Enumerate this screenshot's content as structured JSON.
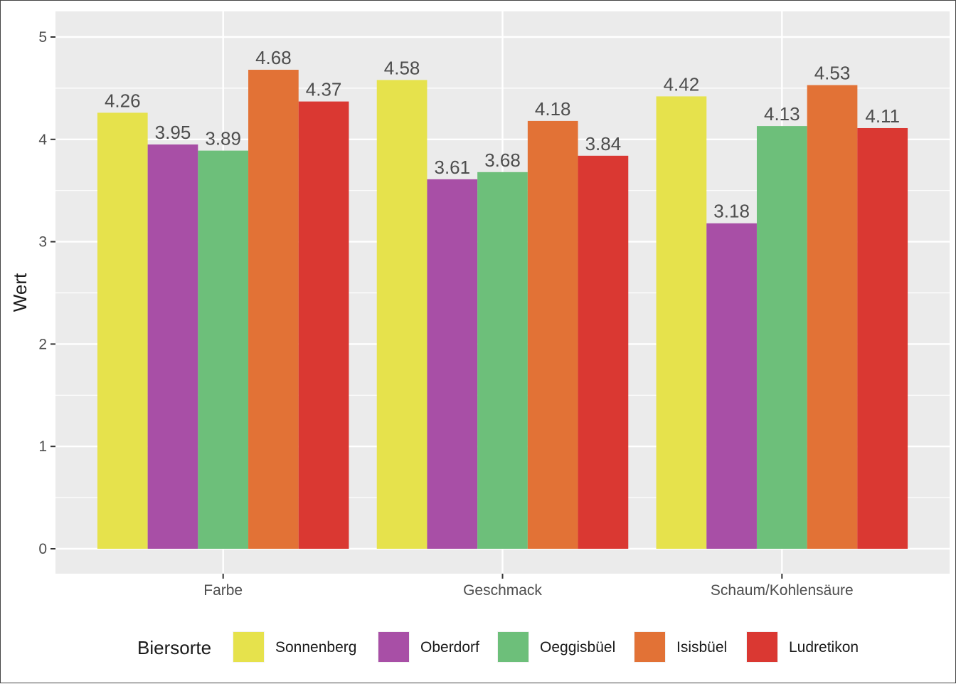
{
  "chart_data": {
    "type": "bar",
    "ylabel": "Wert",
    "xlabel": "",
    "ylim": [
      -0.25,
      5.25
    ],
    "yticks": [
      "0",
      "1",
      "2",
      "3",
      "4",
      "5"
    ],
    "grid": true,
    "legend_position": "bottom",
    "legend_title": "Biersorte",
    "categories": [
      "Farbe",
      "Geschmack",
      "Schaum/Kohlensäure"
    ],
    "series": [
      {
        "name": "Sonnenberg",
        "color": "#e6e24c",
        "values": [
          4.26,
          4.58,
          4.42
        ],
        "labels": [
          "4.26",
          "4.58",
          "4.42"
        ]
      },
      {
        "name": "Oberdorf",
        "color": "#a84fa6",
        "values": [
          3.95,
          3.61,
          3.18
        ],
        "labels": [
          "3.95",
          "3.61",
          "3.18"
        ]
      },
      {
        "name": "Oeggisbüel",
        "color": "#6dbf7a",
        "values": [
          3.89,
          3.68,
          4.13
        ],
        "labels": [
          "3.89",
          "3.68",
          "4.13"
        ]
      },
      {
        "name": "Isisbüel",
        "color": "#e27236",
        "values": [
          4.68,
          4.18,
          4.53
        ],
        "labels": [
          "4.68",
          "4.18",
          "4.53"
        ]
      },
      {
        "name": "Ludretikon",
        "color": "#da3832",
        "values": [
          4.37,
          3.84,
          4.11
        ],
        "labels": [
          "4.37",
          "3.84",
          "4.11"
        ]
      }
    ]
  }
}
